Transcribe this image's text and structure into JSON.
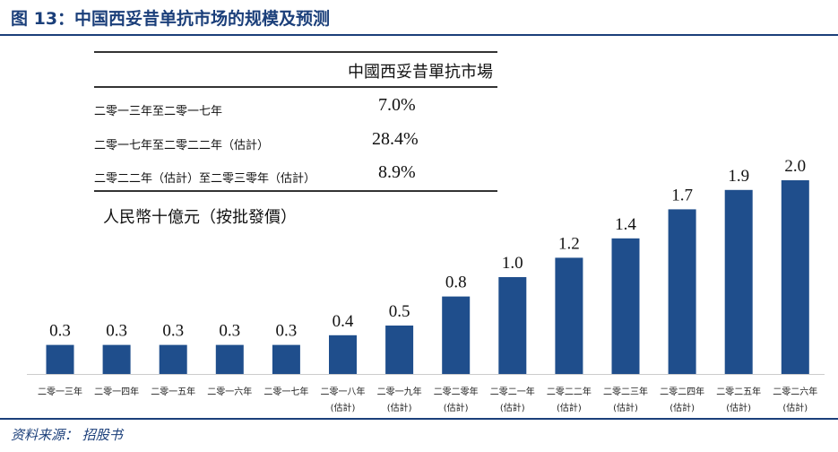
{
  "header": {
    "title": "图 13：中国西妥昔单抗市场的规模及预测"
  },
  "table": {
    "column_header": "中國西妥昔單抗市場",
    "rows": [
      {
        "period": "二零一三年至二零一七年",
        "cagr": "7.0%"
      },
      {
        "period": "二零一七年至二零二二年（估計）",
        "cagr": "28.4%"
      },
      {
        "period": "二零二二年（估計）至二零三零年（估計）",
        "cagr": "8.9%"
      }
    ]
  },
  "chart_data": {
    "type": "bar",
    "ylabel": "人民幣十億元（按批發價）",
    "categories": [
      "二零一三年",
      "二零一四年",
      "二零一五年",
      "二零一六年",
      "二零一七年",
      "二零一八年",
      "二零一九年",
      "二零二零年",
      "二零二一年",
      "二零二二年",
      "二零二三年",
      "二零二四年",
      "二零二五年",
      "二零二六年"
    ],
    "category_notes": [
      "",
      "",
      "",
      "",
      "",
      "(估計)",
      "(估計)",
      "(估計)",
      "(估計)",
      "(估計)",
      "(估計)",
      "(估計)",
      "(估計)",
      "(估計)"
    ],
    "values": [
      0.3,
      0.3,
      0.3,
      0.3,
      0.3,
      0.4,
      0.5,
      0.8,
      1.0,
      1.2,
      1.4,
      1.7,
      1.9,
      2.0
    ],
    "data_labels": [
      "0.3",
      "0.3",
      "0.3",
      "0.3",
      "0.3",
      "0.4",
      "0.5",
      "0.8",
      "1.0",
      "1.2",
      "1.4",
      "1.7",
      "1.9",
      "2.0"
    ],
    "ylim": [
      0,
      2.0
    ],
    "grid": false,
    "bar_color": "#1f4e8c"
  },
  "footer": {
    "source": "资料来源：  招股书"
  }
}
